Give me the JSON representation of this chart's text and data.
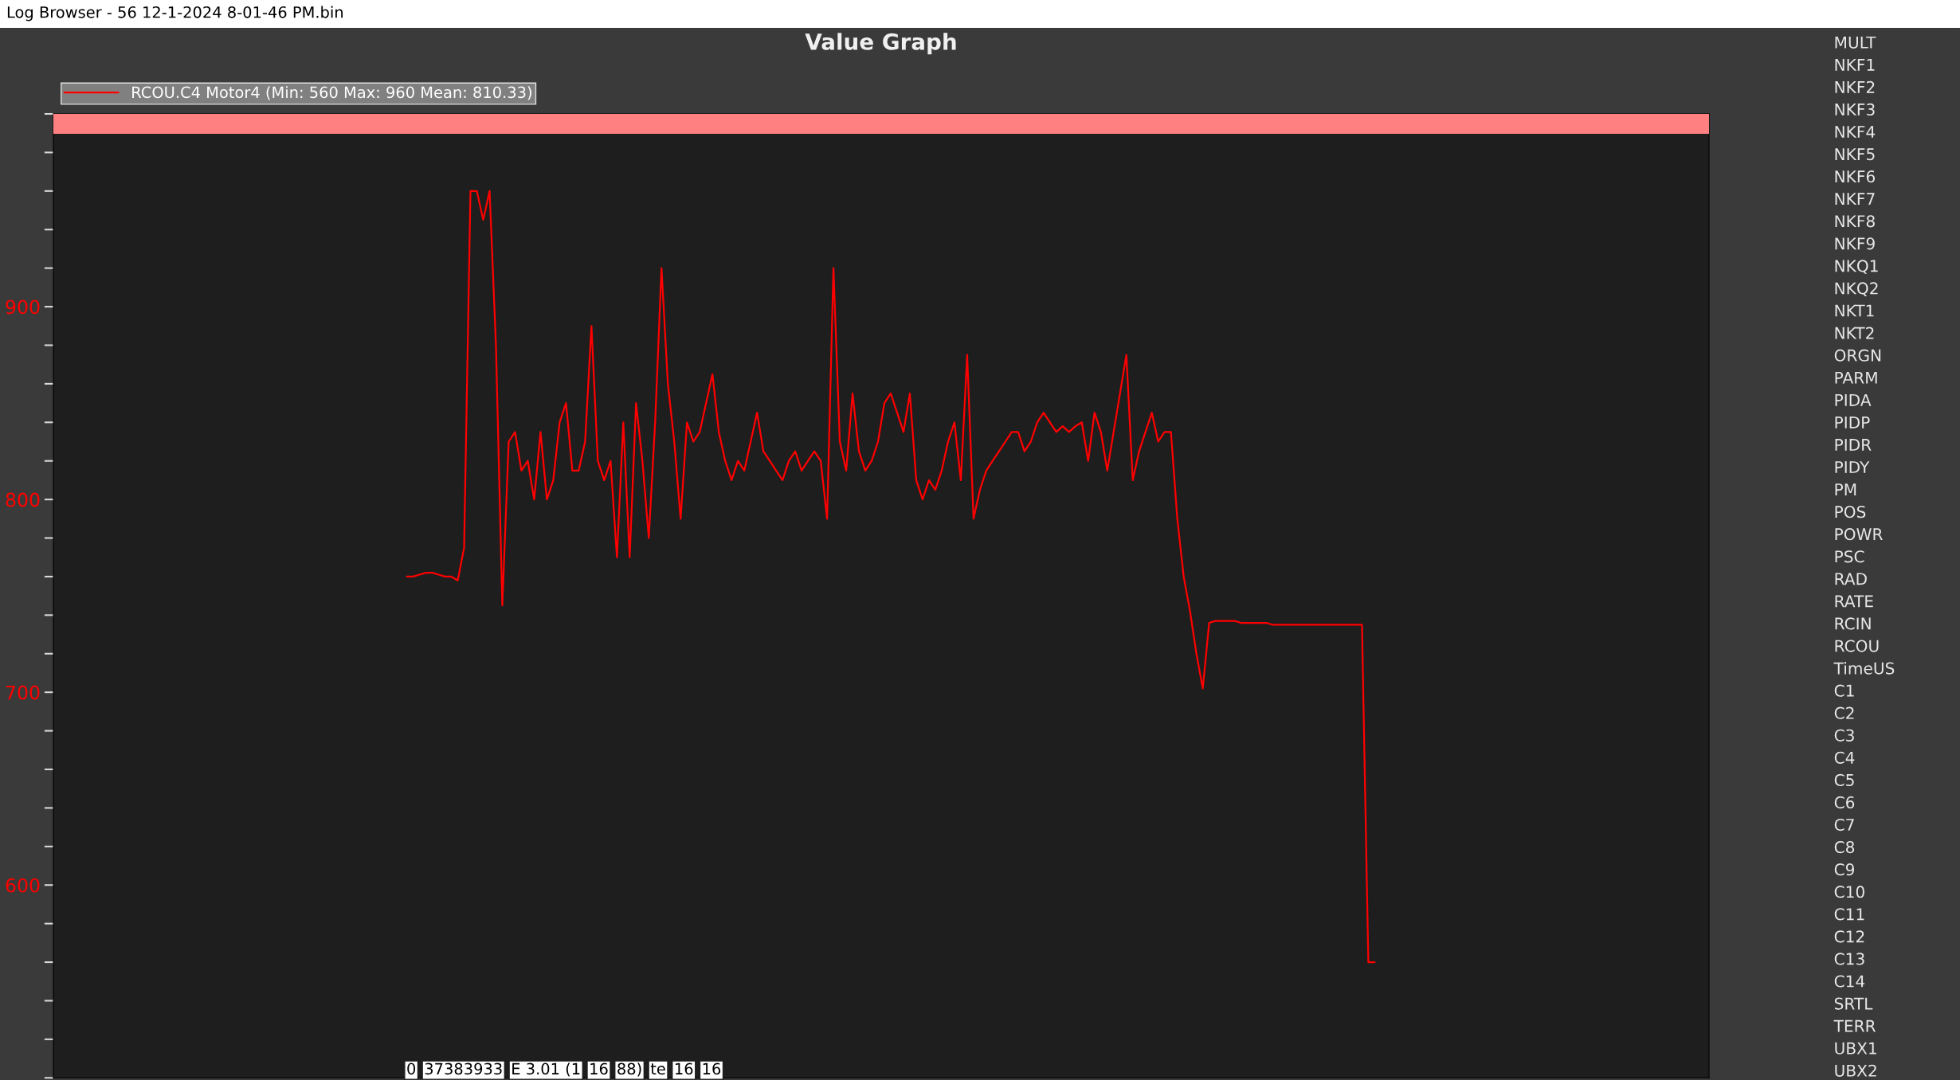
{
  "chart_data": [
    {
      "type": "line",
      "title": "Value Graph",
      "legend": "top left",
      "grid": false,
      "categories": [
        null,
        null,
        null,
        null,
        null,
        null,
        null,
        null,
        null,
        null,
        null,
        null,
        null,
        null,
        null,
        null,
        null,
        null,
        null,
        null,
        null,
        null,
        null,
        null,
        null,
        null,
        null,
        null,
        null,
        null,
        null,
        null,
        null,
        null,
        null,
        null,
        null,
        null,
        null,
        null,
        null,
        null,
        null,
        null,
        null,
        null,
        null,
        null,
        null,
        null,
        null,
        null,
        null,
        null,
        null,
        null,
        null,
        null,
        null,
        null,
        null,
        null,
        null,
        null,
        null,
        null,
        null,
        null,
        null,
        null,
        null,
        null,
        null,
        null,
        null,
        null,
        null,
        null,
        null,
        null,
        null,
        null,
        null,
        null,
        null,
        null,
        null,
        null,
        null,
        null,
        null,
        null,
        null,
        null,
        null,
        null,
        null,
        null,
        null,
        null,
        null,
        null,
        null,
        null,
        null,
        null,
        null,
        null,
        null,
        null,
        null,
        null,
        null,
        null,
        null,
        null,
        null,
        null,
        null,
        null,
        null,
        null,
        null,
        null,
        null,
        null,
        null,
        null,
        null,
        null,
        null,
        null,
        null,
        null,
        null,
        null,
        null,
        null,
        null,
        null,
        null,
        null,
        null,
        null,
        null,
        null,
        null,
        null,
        null,
        null,
        null,
        null,
        null,
        null,
        null,
        null,
        null,
        null,
        null,
        null,
        null,
        null,
        null,
        null,
        null,
        null,
        null,
        null,
        null,
        null,
        null,
        null,
        null,
        null,
        null,
        null,
        null,
        null,
        null,
        null,
        null,
        null,
        null,
        null,
        null,
        null,
        null,
        null,
        null,
        null,
        null,
        null,
        null,
        null,
        null,
        null,
        null,
        null,
        null,
        null,
        null,
        null,
        null,
        null,
        null,
        null,
        null,
        null,
        null,
        null,
        null,
        null,
        null,
        null,
        null,
        null,
        null,
        null,
        null,
        null,
        null,
        null,
        null,
        null,
        null,
        null,
        null,
        null,
        null,
        null,
        null,
        null,
        null,
        null,
        null,
        null,
        null,
        null,
        null,
        null,
        null,
        null,
        null,
        null,
        null,
        null,
        null,
        null,
        null,
        null,
        null,
        null,
        null,
        null,
        null,
        null,
        null,
        null,
        null,
        null
      ],
      "series": [
        {
          "name": "RCOU.C4 Motor4 (Min: 560 Max: 960 Mean: 810.33)",
          "color": "#ff0000",
          "values": [
            null,
            null,
            null,
            null,
            null,
            null,
            null,
            null,
            null,
            null,
            null,
            null,
            null,
            null,
            null,
            null,
            null,
            null,
            null,
            null,
            null,
            null,
            null,
            null,
            null,
            null,
            null,
            null,
            null,
            null,
            null,
            null,
            null,
            null,
            null,
            null,
            null,
            null,
            null,
            null,
            null,
            null,
            null,
            null,
            null,
            null,
            null,
            null,
            null,
            null,
            null,
            null,
            null,
            null,
            null,
            760,
            760,
            761,
            762,
            762,
            761,
            760,
            760,
            758,
            775,
            960,
            960,
            945,
            960,
            880,
            745,
            830,
            835,
            815,
            820,
            800,
            835,
            800,
            810,
            840,
            850,
            815,
            815,
            830,
            890,
            820,
            810,
            820,
            770,
            840,
            770,
            850,
            820,
            780,
            840,
            920,
            860,
            830,
            790,
            840,
            830,
            835,
            850,
            865,
            835,
            820,
            810,
            820,
            815,
            830,
            845,
            825,
            820,
            815,
            810,
            820,
            825,
            815,
            820,
            825,
            820,
            790,
            920,
            830,
            815,
            855,
            825,
            815,
            820,
            830,
            850,
            855,
            845,
            835,
            855,
            810,
            800,
            810,
            805,
            815,
            830,
            840,
            810,
            875,
            790,
            805,
            815,
            820,
            825,
            830,
            835,
            835,
            825,
            830,
            840,
            845,
            840,
            835,
            838,
            835,
            838,
            840,
            820,
            845,
            835,
            815,
            835,
            855,
            875,
            810,
            825,
            835,
            845,
            830,
            835,
            835,
            790,
            760,
            742,
            720,
            702,
            736,
            737,
            737,
            737,
            737,
            736,
            736,
            736,
            736,
            736,
            735,
            735,
            735,
            735,
            735,
            735,
            735,
            735,
            735,
            735,
            735,
            735,
            735,
            735,
            735,
            560,
            560,
            null,
            null,
            null,
            null,
            null,
            null,
            null,
            null,
            null,
            null,
            null,
            null,
            null,
            null,
            null,
            null,
            null,
            null,
            null,
            null,
            null,
            null,
            null,
            null,
            null,
            null,
            null,
            null,
            null,
            null,
            null,
            null,
            null,
            null,
            null,
            null,
            null,
            null,
            null,
            null,
            null,
            null,
            null,
            null,
            null,
            null,
            null,
            null,
            null,
            null,
            null,
            null
          ]
        }
      ],
      "ylim": [
        500,
        1000
      ],
      "yticks": [
        {
          "value": 1000,
          "label": null
        },
        {
          "value": 980,
          "label": null
        },
        {
          "value": 960,
          "label": null
        },
        {
          "value": 940,
          "label": null
        },
        {
          "value": 920,
          "label": null
        },
        900,
        {
          "value": 880,
          "label": null
        },
        {
          "value": 860,
          "label": null
        },
        {
          "value": 840,
          "label": null
        },
        {
          "value": 820,
          "label": null
        },
        800,
        {
          "value": 780,
          "label": null
        },
        {
          "value": 760,
          "label": null
        },
        {
          "value": 740,
          "label": null
        },
        {
          "value": 720,
          "label": null
        },
        700,
        {
          "value": 680,
          "label": null
        },
        {
          "value": 660,
          "label": null
        },
        {
          "value": 640,
          "label": null
        },
        {
          "value": 620,
          "label": null
        },
        600,
        {
          "value": 580,
          "label": null
        },
        {
          "value": 560,
          "label": null
        },
        {
          "value": 540,
          "label": null
        },
        {
          "value": 520,
          "label": null
        },
        {
          "value": 500,
          "label": null
        }
      ],
      "bands": [
        {
          "axis": "y",
          "from": 990,
          "to": 1000,
          "color": "#ff8080"
        }
      ],
      "annotations": [
        "Log Browser - 56 12-1-2024 8-01-46 PM.bin",
        "0",
        "37383933",
        "E 3.01 (1",
        "16",
        "88)",
        "te",
        "16",
        "16"
      ]
    },
    {
      "type": "other",
      "annotations": [
        "MULT",
        "NKF1",
        "NKF2",
        "NKF3",
        "NKF4",
        "NKF5",
        "NKF6",
        "NKF7",
        "NKF8",
        "NKF9",
        "NKQ1",
        "NKQ2",
        "NKT1",
        "NKT2",
        "ORGN",
        "PARM",
        "PIDA",
        "PIDP",
        "PIDR",
        "PIDY",
        "PM",
        "POS",
        "POWR",
        "PSC",
        "RAD",
        "RATE",
        "RCIN",
        "RCOU",
        "TimeUS",
        "C1",
        "C2",
        "C3",
        "C4",
        "C5",
        "C6",
        "C7",
        "C8",
        "C9",
        "C10",
        "C11",
        "C12",
        "C13",
        "C14",
        "SRTL",
        "TERR",
        "UBX1",
        "UBX2"
      ]
    }
  ]
}
